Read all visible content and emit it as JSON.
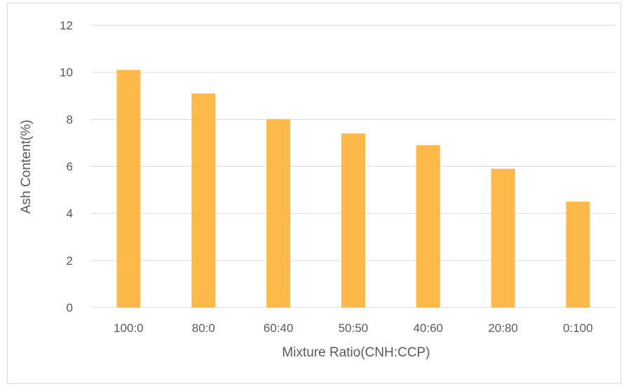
{
  "chart_data": {
    "type": "bar",
    "categories": [
      "100:0",
      "80:0",
      "60:40",
      "50:50",
      "40:60",
      "20:80",
      "0:100"
    ],
    "values": [
      10.1,
      9.1,
      8.0,
      7.4,
      6.9,
      5.9,
      4.5
    ],
    "xlabel": "Mixture Ratio(CNH:CCP)",
    "ylabel": "Ash Content(%)",
    "ylim": [
      0,
      12
    ],
    "yticks": [
      0,
      2,
      4,
      6,
      8,
      10,
      12
    ],
    "grid": true,
    "legend": "none",
    "bar_color": "#FFB94A",
    "grid_color": "#D9D9D9",
    "text_color": "#595959"
  }
}
